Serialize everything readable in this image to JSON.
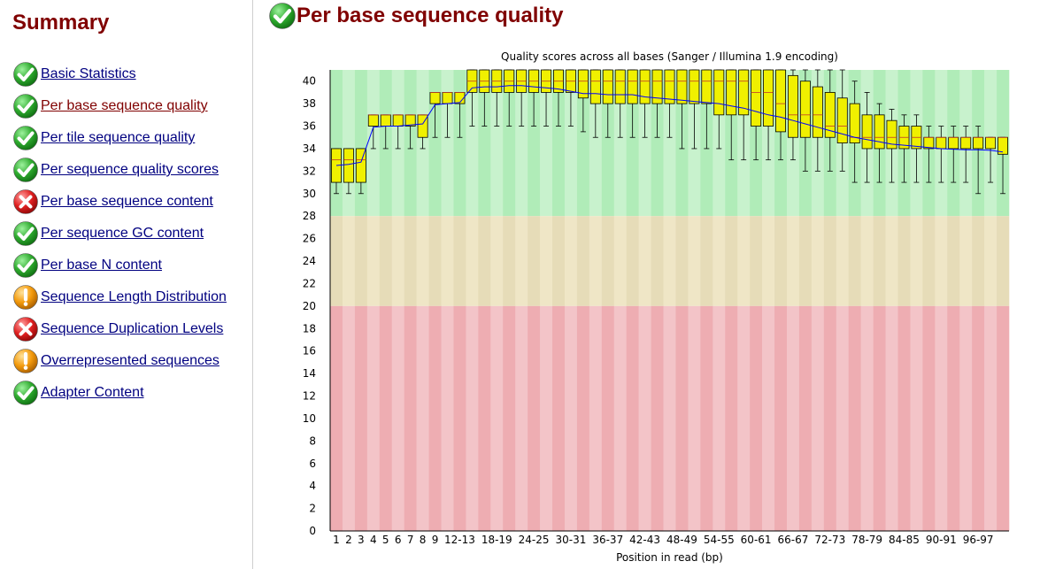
{
  "sidebar": {
    "title": "Summary",
    "modules": [
      {
        "label": "Basic Statistics",
        "status": "pass",
        "icon": "check-icon"
      },
      {
        "label": "Per base sequence quality",
        "status": "pass",
        "icon": "check-icon",
        "active": true
      },
      {
        "label": "Per tile sequence quality",
        "status": "pass",
        "icon": "check-icon"
      },
      {
        "label": "Per sequence quality scores",
        "status": "pass",
        "icon": "check-icon"
      },
      {
        "label": "Per base sequence content",
        "status": "fail",
        "icon": "cross-icon"
      },
      {
        "label": "Per sequence GC content",
        "status": "pass",
        "icon": "check-icon"
      },
      {
        "label": "Per base N content",
        "status": "pass",
        "icon": "check-icon"
      },
      {
        "label": "Sequence Length Distribution",
        "status": "warn",
        "icon": "warning-icon"
      },
      {
        "label": "Sequence Duplication Levels",
        "status": "fail",
        "icon": "cross-icon"
      },
      {
        "label": "Overrepresented sequences",
        "status": "warn",
        "icon": "warning-icon"
      },
      {
        "label": "Adapter Content",
        "status": "pass",
        "icon": "check-icon"
      }
    ]
  },
  "main": {
    "title": "Per base sequence quality",
    "status": "pass",
    "icon": "check-icon"
  },
  "colors": {
    "heading": "#800000",
    "link": "#000080",
    "pass": "#2eaa2e",
    "fail": "#e02020",
    "warn": "#f39a0c",
    "box": "#f0f000",
    "mean_line": "#0000ff",
    "good_zone": [
      "#b0ecb8",
      "#c8f2cd"
    ],
    "medium_zone": [
      "#e6dcb8",
      "#efe6c6"
    ],
    "bad_zone": [
      "#eeadb2",
      "#f3c4c8"
    ]
  },
  "chart_data": {
    "type": "boxplot",
    "title": "Quality scores across all bases (Sanger / Illumina 1.9 encoding)",
    "xlabel": "Position in read (bp)",
    "ylabel": "",
    "ylim": [
      0,
      41
    ],
    "yticks": [
      0,
      2,
      4,
      6,
      8,
      10,
      12,
      14,
      16,
      18,
      20,
      22,
      24,
      26,
      28,
      30,
      32,
      34,
      36,
      38,
      40
    ],
    "zones": [
      {
        "name": "good",
        "from": 28,
        "to": 41
      },
      {
        "name": "medium",
        "from": 20,
        "to": 28
      },
      {
        "name": "bad",
        "from": 0,
        "to": 20
      }
    ],
    "categories": [
      "1",
      "2",
      "3",
      "4",
      "5",
      "6",
      "7",
      "8",
      "9",
      "10-11",
      "12-13",
      "14-15",
      "16-17",
      "18-19",
      "20-21",
      "22-23",
      "24-25",
      "26-27",
      "28-29",
      "30-31",
      "32-33",
      "34-35",
      "36-37",
      "38-39",
      "40-41",
      "42-43",
      "44-45",
      "46-47",
      "48-49",
      "50-51",
      "52-53",
      "54-55",
      "56-57",
      "58-59",
      "60-61",
      "62-63",
      "64-65",
      "66-67",
      "68-69",
      "70-71",
      "72-73",
      "74-75",
      "76-77",
      "78-79",
      "80-81",
      "82-83",
      "84-85",
      "86-87",
      "88-89",
      "90-91",
      "92-93",
      "94-95",
      "96-97",
      "98-99",
      "100-101"
    ],
    "visible_tick_labels": [
      "1",
      "2",
      "3",
      "4",
      "5",
      "6",
      "7",
      "8",
      "9",
      "12-13",
      "18-19",
      "24-25",
      "30-31",
      "36-37",
      "42-43",
      "48-49",
      "54-55",
      "60-61",
      "66-67",
      "72-73",
      "78-79",
      "84-85",
      "90-91",
      "96-97"
    ],
    "series": [
      {
        "name": "lower_whisker",
        "values": [
          30,
          30,
          30,
          34,
          34,
          34,
          34,
          34,
          35,
          35,
          35,
          36,
          36,
          36,
          36,
          36,
          36,
          36,
          36,
          36,
          35.5,
          35,
          35,
          35,
          35,
          35,
          35,
          35,
          34,
          34,
          34,
          34,
          33,
          33,
          33,
          33,
          33,
          33,
          32,
          32,
          32,
          32,
          31,
          31,
          31,
          31,
          31,
          31,
          31,
          31,
          31,
          31,
          30,
          31,
          30
        ]
      },
      {
        "name": "q1",
        "values": [
          31,
          31,
          31,
          36,
          36,
          36,
          36,
          35,
          38,
          38,
          38,
          39,
          39,
          39,
          39,
          39,
          39,
          39,
          39,
          39,
          38.5,
          38,
          38,
          38,
          38,
          38,
          38,
          38,
          38,
          38,
          38,
          37,
          37,
          37,
          36,
          36,
          35.5,
          35,
          35,
          35,
          35,
          34.5,
          34.5,
          34,
          34,
          34,
          34,
          34,
          34,
          34,
          34,
          34,
          34,
          34,
          33.5
        ]
      },
      {
        "name": "median",
        "values": [
          33,
          33,
          33,
          37,
          37,
          37,
          37,
          37,
          39,
          39,
          39,
          40,
          40,
          40,
          40,
          40,
          40,
          40,
          40,
          40,
          40,
          40,
          40,
          40,
          40,
          40,
          40,
          40,
          40,
          40,
          40,
          40,
          40,
          40,
          39,
          39,
          38,
          37,
          37,
          37,
          36,
          36,
          35,
          35,
          35,
          35,
          35,
          35,
          35,
          35,
          35,
          35,
          35,
          35,
          35
        ]
      },
      {
        "name": "q3",
        "values": [
          34,
          34,
          34,
          37,
          37,
          37,
          37,
          37,
          39,
          39,
          39,
          41,
          41,
          41,
          41,
          41,
          41,
          41,
          41,
          41,
          41,
          41,
          41,
          41,
          41,
          41,
          41,
          41,
          41,
          41,
          41,
          41,
          41,
          41,
          41,
          41,
          41,
          40.5,
          40,
          39.5,
          39,
          38.5,
          38,
          37,
          37,
          36.5,
          36,
          36,
          35,
          35,
          35,
          35,
          35,
          35,
          35
        ]
      },
      {
        "name": "upper_whisker",
        "values": [
          34,
          34,
          34,
          37,
          37,
          37,
          37,
          37,
          39,
          39,
          39,
          41,
          41,
          41,
          41,
          41,
          41,
          41,
          41,
          41,
          41,
          41,
          41,
          41,
          41,
          41,
          41,
          41,
          41,
          41,
          41,
          41,
          41,
          41,
          41,
          41,
          41,
          41,
          41,
          41,
          41,
          41,
          40,
          39,
          38,
          37.5,
          37,
          37,
          36,
          36,
          36,
          36,
          36,
          35,
          35
        ]
      },
      {
        "name": "mean",
        "values": [
          32.5,
          32.6,
          32.8,
          35.9,
          36.0,
          36.0,
          36.1,
          36.2,
          37.9,
          38.0,
          38.1,
          39.4,
          39.5,
          39.5,
          39.6,
          39.6,
          39.5,
          39.4,
          39.3,
          39.1,
          38.9,
          38.9,
          38.8,
          38.8,
          38.8,
          38.6,
          38.5,
          38.4,
          38.3,
          38.2,
          38.1,
          38.0,
          37.8,
          37.6,
          37.3,
          37.0,
          36.8,
          36.5,
          36.2,
          35.9,
          35.6,
          35.3,
          35.0,
          34.8,
          34.6,
          34.4,
          34.3,
          34.2,
          34.1,
          34.0,
          33.95,
          33.9,
          33.9,
          33.85,
          33.7
        ]
      }
    ]
  }
}
